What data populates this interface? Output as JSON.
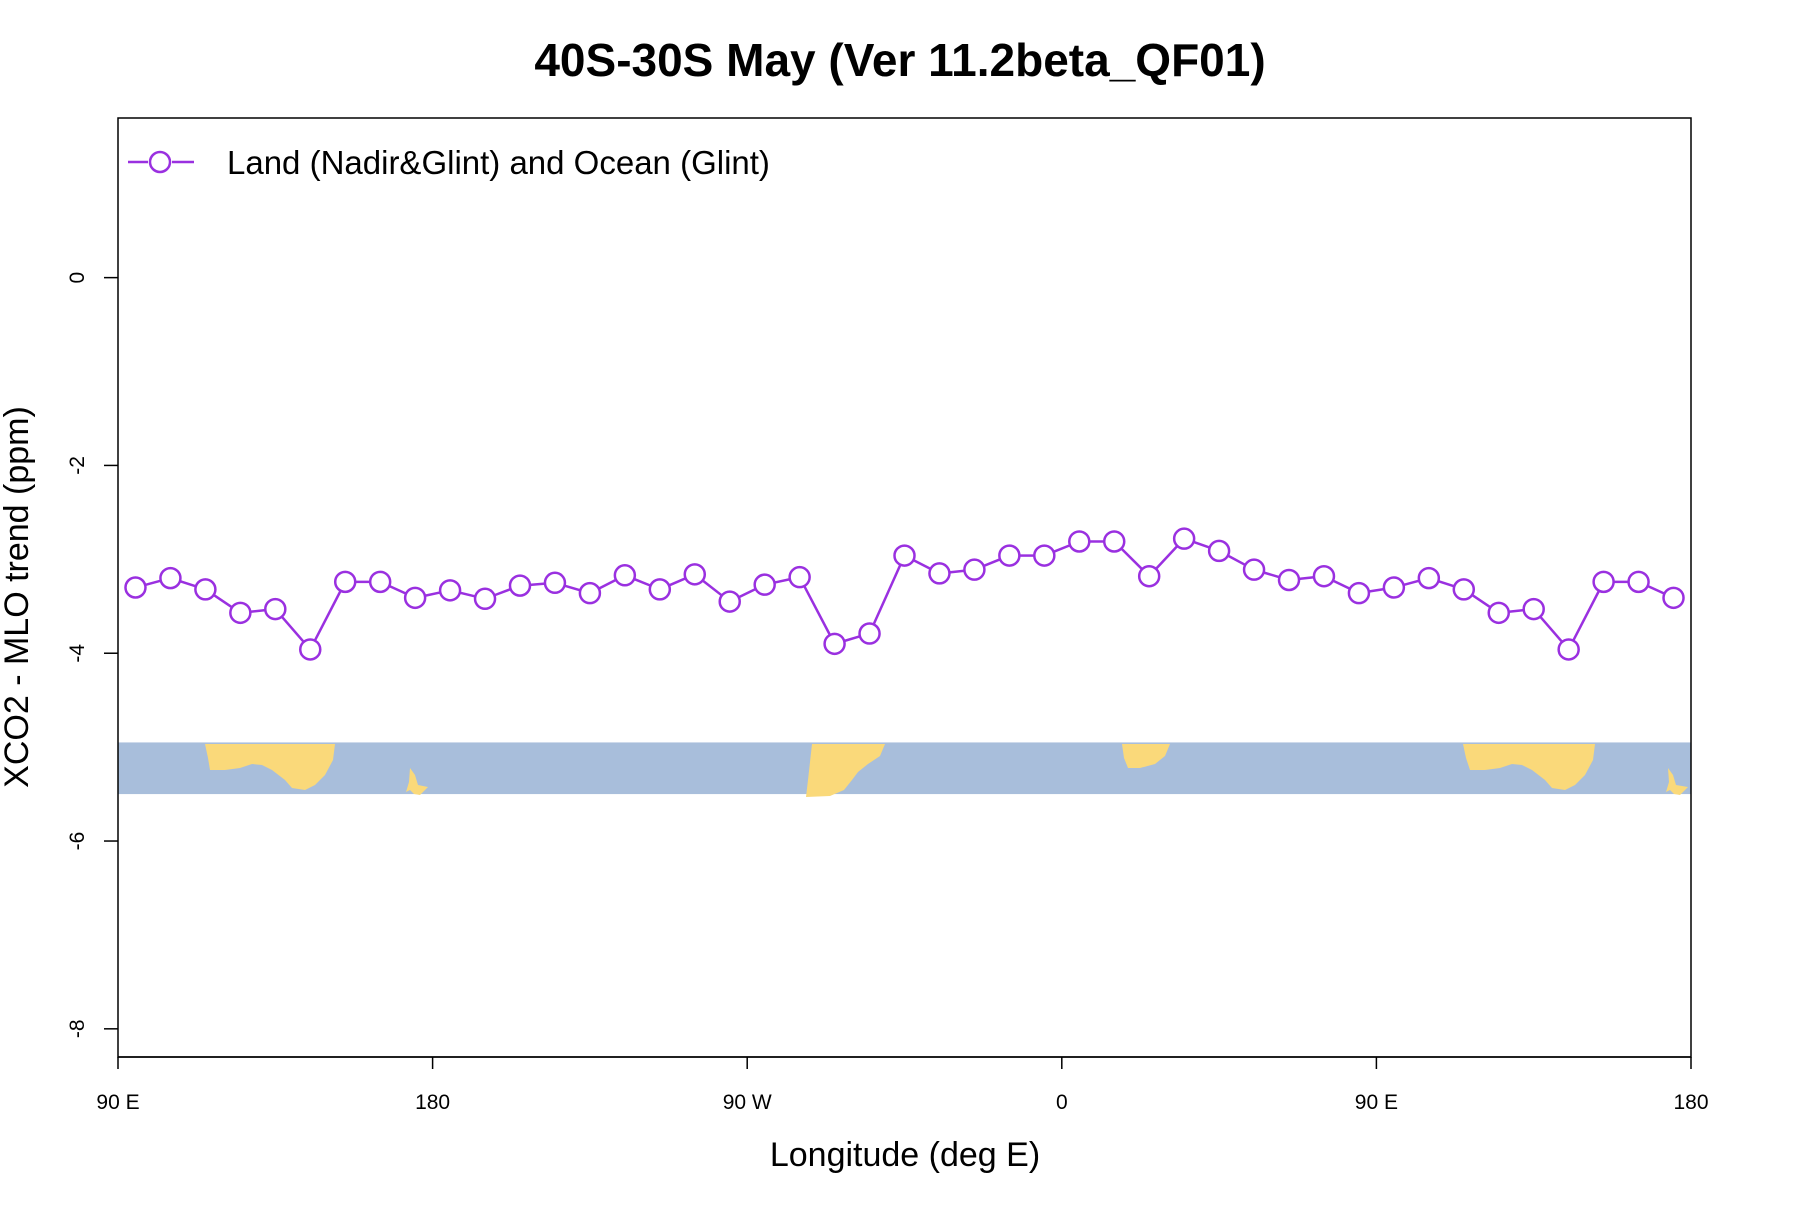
{
  "chart_data": {
    "type": "line",
    "title": "40S-30S May (Ver 11.2beta_QF01)",
    "xlabel": "Longitude (deg E)",
    "ylabel": "XCO2 - MLO trend (ppm)",
    "xlim": [
      90,
      540
    ],
    "ylim": [
      -8.3,
      1.7
    ],
    "x_ticks": [
      {
        "value": 90,
        "label": "90 E"
      },
      {
        "value": 180,
        "label": "180"
      },
      {
        "value": 270,
        "label": "90 W"
      },
      {
        "value": 360,
        "label": "0"
      },
      {
        "value": 450,
        "label": "90 E"
      },
      {
        "value": 540,
        "label": "180"
      }
    ],
    "y_ticks": [
      {
        "value": 0,
        "label": "0"
      },
      {
        "value": -2,
        "label": "-2"
      },
      {
        "value": -4,
        "label": "-4"
      },
      {
        "value": -6,
        "label": "-6"
      },
      {
        "value": -8,
        "label": "-8"
      }
    ],
    "grid": false,
    "legend": {
      "position": "top-left"
    },
    "background_band": {
      "y_range": [
        -5.5,
        -4.95
      ],
      "ocean_color": "#a8bedb",
      "land_color": "#fad97a"
    },
    "series": [
      {
        "name": "Land (Nadir&Glint) and Ocean (Glint)",
        "color": "#9a30e0",
        "marker": "open-circle",
        "x": [
          95,
          105,
          115,
          125,
          135,
          145,
          155,
          165,
          175,
          185,
          195,
          205,
          215,
          225,
          235,
          245,
          255,
          265,
          275,
          285,
          295,
          305,
          315,
          325,
          335,
          345,
          355,
          365,
          375,
          385,
          395,
          405,
          415,
          425,
          435,
          445,
          455,
          465,
          475,
          485,
          495,
          505,
          515,
          525,
          535
        ],
        "values": [
          -3.3,
          -3.2,
          -3.32,
          -3.57,
          -3.53,
          -3.96,
          -3.24,
          -3.24,
          -3.41,
          -3.33,
          -3.42,
          -3.28,
          -3.25,
          -3.36,
          -3.17,
          -3.32,
          -3.16,
          -3.45,
          -3.27,
          -3.19,
          -3.9,
          -3.79,
          -2.96,
          -3.15,
          -3.11,
          -2.96,
          -2.96,
          -2.81,
          -2.81,
          -3.18,
          -2.78,
          -2.91,
          -3.11,
          -3.22,
          -3.18,
          -3.36,
          -3.3,
          -3.2,
          -3.32,
          -3.57,
          -3.53,
          -3.96,
          -3.24,
          -3.24,
          -3.41
        ]
      }
    ]
  }
}
